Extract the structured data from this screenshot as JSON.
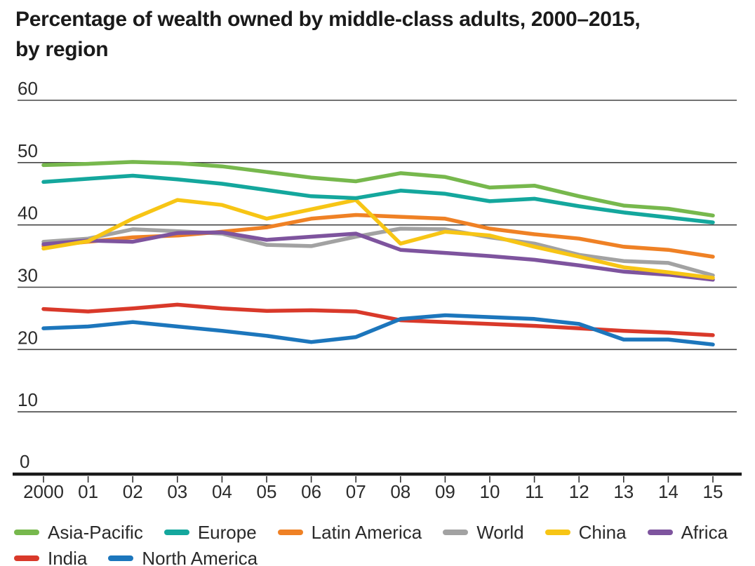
{
  "title": {
    "line1": "Percentage of wealth owned by middle-class adults, 2000–2015,",
    "line2": "by region"
  },
  "colors": {
    "background": "#ffffff",
    "title_text": "#1a1a1a",
    "gridline": "#454545",
    "axis_line": "#1a1a1a",
    "tick_label": "#2b2b2b",
    "legend_text": "#2a2a2a"
  },
  "chart_data": {
    "type": "line",
    "title": "Percentage of wealth owned by middle-class adults, 2000–2015, by region",
    "xlabel": "",
    "ylabel": "",
    "unit": "percent",
    "grid": "horizontal",
    "legend_position": "bottom",
    "ylim": [
      0,
      60
    ],
    "y_ticks": [
      0,
      10,
      20,
      30,
      40,
      50,
      60
    ],
    "x_tick_labels": [
      "2000",
      "01",
      "02",
      "03",
      "04",
      "05",
      "06",
      "07",
      "08",
      "09",
      "10",
      "11",
      "12",
      "13",
      "14",
      "15"
    ],
    "x_values": [
      2000,
      2001,
      2002,
      2003,
      2004,
      2005,
      2006,
      2007,
      2008,
      2009,
      2010,
      2011,
      2012,
      2013,
      2014,
      2015
    ],
    "series": [
      {
        "name": "World",
        "color": "#a2a2a2",
        "values": [
          37.3,
          37.8,
          39.3,
          39.0,
          38.6,
          36.8,
          36.6,
          38.1,
          39.4,
          39.3,
          38.0,
          37.0,
          35.2,
          34.2,
          33.9,
          31.9
        ]
      },
      {
        "name": "Latin America",
        "color": "#ef8125",
        "values": [
          36.6,
          37.3,
          38.0,
          38.3,
          38.9,
          39.6,
          41.0,
          41.6,
          41.3,
          41.0,
          39.4,
          38.5,
          37.8,
          36.5,
          36.0,
          34.9
        ]
      },
      {
        "name": "Africa",
        "color": "#7e549e",
        "values": [
          36.9,
          37.5,
          37.3,
          38.7,
          38.8,
          37.6,
          38.1,
          38.6,
          36.0,
          35.5,
          35.0,
          34.4,
          33.5,
          32.5,
          32.0,
          31.2
        ]
      },
      {
        "name": "China",
        "color": "#f7c515",
        "values": [
          36.2,
          37.4,
          41.0,
          44.0,
          43.2,
          41.0,
          42.5,
          44.0,
          37.0,
          38.9,
          38.3,
          36.5,
          34.9,
          33.2,
          32.4,
          31.5
        ]
      },
      {
        "name": "Europe",
        "color": "#14a79d",
        "values": [
          46.9,
          47.4,
          47.9,
          47.3,
          46.6,
          45.6,
          44.6,
          44.3,
          45.5,
          45.0,
          43.8,
          44.2,
          43.0,
          42.0,
          41.2,
          40.4
        ]
      },
      {
        "name": "Asia-Pacific",
        "color": "#77b84d",
        "values": [
          49.6,
          49.8,
          50.1,
          49.9,
          49.4,
          48.5,
          47.6,
          47.0,
          48.3,
          47.7,
          46.0,
          46.3,
          44.6,
          43.1,
          42.6,
          41.5
        ]
      },
      {
        "name": "India",
        "color": "#d9392a",
        "values": [
          26.5,
          26.1,
          26.6,
          27.2,
          26.6,
          26.2,
          26.3,
          26.1,
          24.7,
          24.4,
          24.1,
          23.8,
          23.4,
          23.0,
          22.7,
          22.3
        ]
      },
      {
        "name": "North America",
        "color": "#1c76bc",
        "values": [
          23.4,
          23.7,
          24.4,
          23.7,
          23.0,
          22.2,
          21.2,
          22.0,
          24.9,
          25.5,
          25.2,
          24.9,
          24.1,
          21.6,
          21.6,
          20.8
        ]
      }
    ],
    "legend_order": [
      "Asia-Pacific",
      "Europe",
      "Latin America",
      "World",
      "China",
      "Africa",
      "India",
      "North America"
    ]
  }
}
